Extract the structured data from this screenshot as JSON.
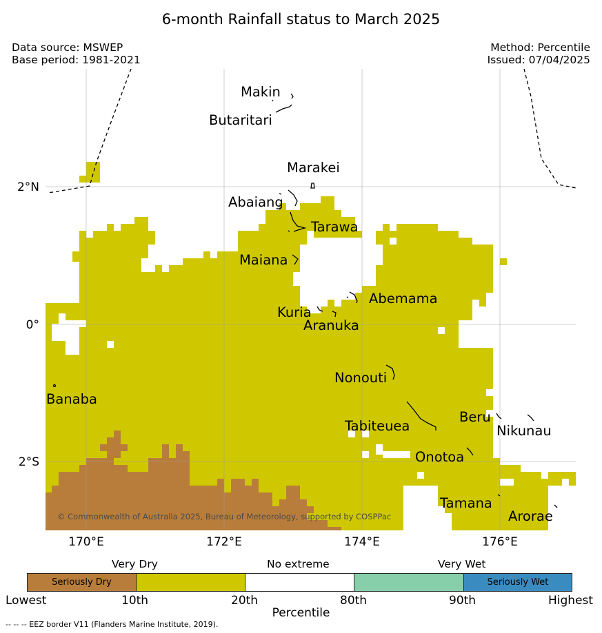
{
  "title": "6-month Rainfall status to March 2025",
  "meta_left": {
    "source": "Data source: MSWEP",
    "base": "Base period: 1981-2021"
  },
  "meta_right": {
    "method": "Method: Percentile",
    "issued": "Issued: 07/04/2025"
  },
  "map": {
    "lat_ticks": [
      "2°N",
      "0°",
      "2°S"
    ],
    "lon_ticks": [
      "170°E",
      "172°E",
      "174°E",
      "176°E"
    ],
    "islands": [
      "Makin",
      "Butaritari",
      "Marakei",
      "Abaiang",
      "Tarawa",
      "Maiana",
      "Abemama",
      "Kuria",
      "Aranuka",
      "Nonouti",
      "Banaba",
      "Beru",
      "Tabiteuea",
      "Nikunau",
      "Onotoa",
      "Tamana",
      "Arorae"
    ],
    "copyright": "© Commonwealth of Australia 2025, Bureau of Meteorology, supported by COSPPac",
    "colors": {
      "very_dry": "#cfc800",
      "seriously_dry": "#b97d3b",
      "no_extreme": "#ffffff",
      "very_wet": "#86cfaa",
      "seriously_wet": "#3a8cc0",
      "grid": "#bbbbbb"
    }
  },
  "legend": {
    "categories": [
      "Very Dry",
      "No extreme",
      "Very Wet"
    ],
    "segments": [
      "Seriously Dry",
      "",
      "",
      "",
      "Seriously Wet"
    ],
    "edges": [
      "Lowest",
      "10th",
      "20th",
      "80th",
      "90th",
      "Highest"
    ],
    "axis_title": "Percentile"
  },
  "footnote": "--  --  -- EEZ border V11 (Flanders Marine Institute, 2019)."
}
